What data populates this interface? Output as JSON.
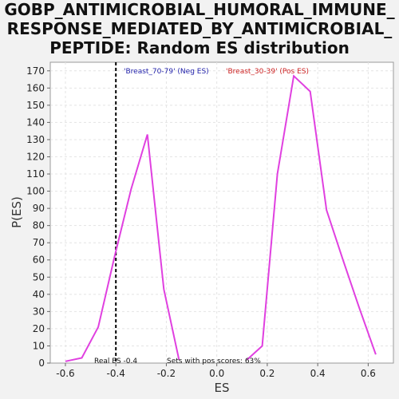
{
  "chart_data": {
    "type": "line",
    "title_lines": [
      "GOBP_ANTIMICROBIAL_HUMORAL_IMMUNE_",
      "RESPONSE_MEDIATED_BY_ANTIMICROBIAL_",
      "PEPTIDE: Random ES distribution"
    ],
    "xlabel": "ES",
    "ylabel": "P(ES)",
    "xlim": [
      -0.66,
      0.7
    ],
    "ylim": [
      0,
      175
    ],
    "x_ticks": [
      -0.6,
      -0.4,
      -0.2,
      0.0,
      0.2,
      0.4,
      0.6
    ],
    "x_tick_labels": [
      "-0.6",
      "-0.4",
      "-0.2",
      "0.0",
      "0.2",
      "0.4",
      "0.6"
    ],
    "y_ticks": [
      0,
      10,
      20,
      30,
      40,
      50,
      60,
      70,
      80,
      90,
      100,
      110,
      120,
      130,
      140,
      150,
      160,
      170
    ],
    "grid": true,
    "series": [
      {
        "color": "#e040e0",
        "x": [
          -0.6,
          -0.535,
          -0.47,
          -0.405,
          -0.34,
          -0.275,
          -0.21,
          -0.15
        ],
        "y": [
          1,
          3,
          21,
          62,
          101,
          133,
          43,
          2
        ]
      },
      {
        "color": "#e040e0",
        "x": [
          0.12,
          0.18,
          0.24,
          0.305,
          0.37,
          0.435,
          0.5,
          0.565,
          0.63
        ],
        "y": [
          2,
          10,
          110,
          167,
          158,
          89,
          60,
          32,
          5
        ]
      }
    ],
    "real_es": -0.4,
    "annotations": {
      "neg_label": "'Breast_70-79' (Neg ES)",
      "pos_label": "'Breast_30-39' (Pos ES)",
      "real_es_label": "Real ES -0.4",
      "sets_label": "Sets with pos scores: 63%"
    },
    "colors": {
      "neg": "#2222aa",
      "pos": "#cc2222",
      "line": "#e040e0"
    }
  }
}
